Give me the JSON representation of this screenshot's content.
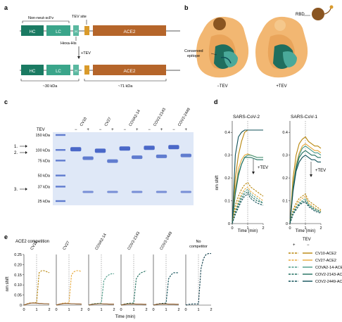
{
  "panels": {
    "a": {
      "letter": "a",
      "construct_labels": {
        "hc": "HC",
        "lc": "LC",
        "his": "H",
        "ace2": "ACE2"
      },
      "annotations": {
        "non_neut": "Non-neut-scFv",
        "tev_site": "TEV site",
        "hexa_his": "Hexa-His",
        "plus_tev": "+TEV",
        "kda30": "~30 kDa",
        "kda71": "~71 kDa"
      }
    },
    "b": {
      "letter": "b",
      "labels": {
        "rbd": "RBD",
        "conserved": "Conserved",
        "epitope": "epitope",
        "minus_tev": "−TEV",
        "plus_tev": "+TEV"
      }
    },
    "c": {
      "letter": "c",
      "tev_label": "TEV",
      "lanes": [
        "CV10",
        "CV27",
        "COVA2-14",
        "COV2-2143",
        "COV2-2449"
      ],
      "lane_signs": [
        "−",
        "+",
        "−",
        "+",
        "−",
        "+",
        "−",
        "+",
        "−",
        "+"
      ],
      "mw_markers": [
        "150 kDa",
        "100 kDa",
        "75 kDa",
        "50 kDa",
        "37 kDa",
        "25 kDa"
      ],
      "band_arrows": [
        "1.",
        "2.",
        "3."
      ]
    },
    "d": {
      "letter": "d",
      "titles": [
        "SARS-CoV-2",
        "SARS-CoV-1"
      ],
      "ylabel": "nm shift",
      "xlabel": "Time (min)",
      "plus_tev": "+TEV",
      "yticks": [
        "0",
        "0.1",
        "0.2",
        "0.3",
        "0.4"
      ],
      "xticks": [
        "0",
        "1",
        "2"
      ]
    },
    "e": {
      "letter": "e",
      "title": "ACE2 competition",
      "subplots": [
        "CV10",
        "CV27",
        "COVA2-14",
        "COV2-2143",
        "COV2-2449",
        "No competitor"
      ],
      "ylabel": "nm shift",
      "xlabel": "Time (min)",
      "yticks": [
        "0",
        "0.05",
        "0.10",
        "0.15",
        "0.20",
        "0.25"
      ],
      "xticks": [
        "0",
        "1",
        "2"
      ]
    },
    "legend": {
      "title": "TEV",
      "plus": "+",
      "minus": "−",
      "entries": [
        "CV10-ACE2",
        "CV27-ACE2",
        "COVA2-14-ACE2",
        "COV2-2143-ACE2",
        "COV2-2449-ACE2"
      ]
    }
  },
  "colors": {
    "cv10": "#b8860b",
    "cv27": "#e8a838",
    "cova2_14": "#4a9a86",
    "cov2_2143": "#1f6e5e",
    "cov2_2449": "#0f4f57",
    "hc": "#1a7a62",
    "lc": "#3aa58a",
    "ace2": "#b5652a",
    "gel_bg": "#dfe8f7",
    "gel_band": "#4a68c8"
  },
  "chart_data": [
    {
      "type": "line",
      "title": "SARS-CoV-2",
      "xlabel": "Time (min)",
      "ylabel": "nm shift",
      "xlim": [
        0,
        2
      ],
      "ylim": [
        0,
        0.45
      ],
      "x": [
        0,
        0.2,
        0.4,
        0.6,
        0.8,
        1.0,
        1.2,
        1.4,
        1.6,
        1.8,
        2.0
      ],
      "series": [
        {
          "name": "CV10-ACE2 +",
          "values": [
            0,
            0.2,
            0.3,
            0.36,
            0.4,
            0.41,
            0.41,
            0.41,
            0.41,
            0.41,
            0.41
          ]
        },
        {
          "name": "CV27-ACE2 +",
          "values": [
            0,
            0.15,
            0.24,
            0.28,
            0.3,
            0.305,
            0.3,
            0.295,
            0.29,
            0.29,
            0.29
          ]
        },
        {
          "name": "COVA2-14-ACE2 +",
          "values": [
            0,
            0.14,
            0.22,
            0.26,
            0.29,
            0.3,
            0.3,
            0.295,
            0.29,
            0.29,
            0.29
          ]
        },
        {
          "name": "COV2-2143-ACE2 +",
          "values": [
            0,
            0.13,
            0.21,
            0.26,
            0.29,
            0.29,
            0.29,
            0.285,
            0.28,
            0.28,
            0.28
          ]
        },
        {
          "name": "COV2-2449-ACE2 +",
          "values": [
            0,
            0.3,
            0.38,
            0.4,
            0.41,
            0.41,
            0.41,
            0.41,
            0.41,
            0.41,
            0.41
          ]
        },
        {
          "name": "CV10-ACE2 −",
          "values": [
            0,
            0.08,
            0.12,
            0.15,
            0.17,
            0.18,
            0.16,
            0.15,
            0.14,
            0.13,
            0.12
          ]
        },
        {
          "name": "CV27-ACE2 −",
          "values": [
            0,
            0.06,
            0.1,
            0.13,
            0.15,
            0.16,
            0.14,
            0.13,
            0.12,
            0.11,
            0.1
          ]
        },
        {
          "name": "COVA2-14-ACE2 −",
          "values": [
            0,
            0.05,
            0.09,
            0.12,
            0.14,
            0.15,
            0.13,
            0.12,
            0.11,
            0.1,
            0.09
          ]
        },
        {
          "name": "COV2-2143-ACE2 −",
          "values": [
            0,
            0.05,
            0.08,
            0.11,
            0.13,
            0.14,
            0.12,
            0.11,
            0.1,
            0.095,
            0.09
          ]
        },
        {
          "name": "COV2-2449-ACE2 −",
          "values": [
            0,
            0.04,
            0.07,
            0.1,
            0.12,
            0.13,
            0.11,
            0.1,
            0.09,
            0.085,
            0.08
          ]
        }
      ]
    },
    {
      "type": "line",
      "title": "SARS-CoV-1",
      "xlabel": "Time (min)",
      "ylabel": "nm shift",
      "xlim": [
        0,
        2
      ],
      "ylim": [
        0,
        0.45
      ],
      "x": [
        0,
        0.2,
        0.4,
        0.6,
        0.8,
        1.0,
        1.2,
        1.4,
        1.6,
        1.8,
        2.0
      ],
      "series": [
        {
          "name": "CV10-ACE2 +",
          "values": [
            0,
            0.2,
            0.3,
            0.35,
            0.37,
            0.38,
            0.36,
            0.35,
            0.34,
            0.34,
            0.33
          ]
        },
        {
          "name": "CV27-ACE2 +",
          "values": [
            0,
            0.17,
            0.26,
            0.31,
            0.34,
            0.35,
            0.34,
            0.33,
            0.32,
            0.32,
            0.31
          ]
        },
        {
          "name": "COVA2-14-ACE2 +",
          "values": [
            0,
            0.16,
            0.25,
            0.3,
            0.33,
            0.34,
            0.33,
            0.32,
            0.31,
            0.31,
            0.3
          ]
        },
        {
          "name": "COV2-2143-ACE2 +",
          "values": [
            0,
            0.15,
            0.24,
            0.29,
            0.31,
            0.32,
            0.31,
            0.3,
            0.3,
            0.29,
            0.29
          ]
        },
        {
          "name": "COV2-2449-ACE2 +",
          "values": [
            0,
            0.14,
            0.23,
            0.27,
            0.29,
            0.3,
            0.29,
            0.28,
            0.28,
            0.27,
            0.27
          ]
        },
        {
          "name": "CV10-ACE2 −",
          "values": [
            0,
            0.06,
            0.09,
            0.11,
            0.12,
            0.13,
            0.1,
            0.09,
            0.08,
            0.07,
            0.06
          ]
        },
        {
          "name": "CV27-ACE2 −",
          "values": [
            0,
            0.05,
            0.08,
            0.1,
            0.11,
            0.12,
            0.09,
            0.08,
            0.07,
            0.06,
            0.055
          ]
        },
        {
          "name": "COVA2-14-ACE2 −",
          "values": [
            0,
            0.05,
            0.07,
            0.09,
            0.1,
            0.11,
            0.085,
            0.075,
            0.065,
            0.06,
            0.05
          ]
        },
        {
          "name": "COV2-2143-ACE2 −",
          "values": [
            0,
            0.04,
            0.07,
            0.085,
            0.095,
            0.1,
            0.08,
            0.07,
            0.06,
            0.055,
            0.05
          ]
        },
        {
          "name": "COV2-2449-ACE2 −",
          "values": [
            0,
            0.04,
            0.06,
            0.08,
            0.09,
            0.095,
            0.075,
            0.065,
            0.055,
            0.05,
            0.045
          ]
        }
      ]
    },
    {
      "type": "line",
      "title": "CV10",
      "xlim": [
        0,
        2
      ],
      "ylim": [
        0,
        0.25
      ],
      "x": [
        0,
        0.2,
        0.4,
        0.6,
        0.8,
        1.0,
        1.2,
        1.4,
        1.6,
        1.8,
        2.0
      ],
      "series": [
        {
          "name": "CV10-ACE2 +",
          "values": [
            0,
            0.005,
            0.01,
            0.01,
            0.012,
            0.012,
            0.16,
            0.17,
            0.17,
            0.165,
            0.16
          ]
        },
        {
          "name": "CV10-ACE2 −",
          "values": [
            0,
            0.005,
            0.008,
            0.01,
            0.01,
            0.01,
            0.008,
            0.008,
            0.007,
            0.007,
            0.006
          ]
        }
      ]
    },
    {
      "type": "line",
      "title": "CV27",
      "xlim": [
        0,
        2
      ],
      "ylim": [
        0,
        0.25
      ],
      "x": [
        0,
        0.2,
        0.4,
        0.6,
        0.8,
        1.0,
        1.2,
        1.4,
        1.6,
        1.8,
        2.0
      ],
      "series": [
        {
          "name": "CV27-ACE2 +",
          "values": [
            0,
            0.004,
            0.008,
            0.01,
            0.01,
            0.01,
            0.15,
            0.165,
            0.17,
            0.17,
            0.165
          ]
        },
        {
          "name": "CV27-ACE2 −",
          "values": [
            0,
            0.004,
            0.006,
            0.008,
            0.008,
            0.008,
            0.007,
            0.007,
            0.006,
            0.006,
            0.005
          ]
        }
      ]
    },
    {
      "type": "line",
      "title": "COVA2-14",
      "xlim": [
        0,
        2
      ],
      "ylim": [
        0,
        0.25
      ],
      "x": [
        0,
        0.2,
        0.4,
        0.6,
        0.8,
        1.0,
        1.2,
        1.4,
        1.6,
        1.8,
        2.0
      ],
      "series": [
        {
          "name": "COVA2-14-ACE2 +",
          "values": [
            0,
            0.004,
            0.007,
            0.008,
            0.009,
            0.01,
            0.12,
            0.14,
            0.15,
            0.155,
            0.155
          ]
        },
        {
          "name": "COVA2-14-ACE2 −",
          "values": [
            0,
            0.003,
            0.005,
            0.006,
            0.007,
            0.007,
            0.006,
            0.006,
            0.005,
            0.005,
            0.005
          ]
        }
      ]
    },
    {
      "type": "line",
      "title": "COV2-2143",
      "xlim": [
        0,
        2
      ],
      "ylim": [
        0,
        0.25
      ],
      "x": [
        0,
        0.2,
        0.4,
        0.6,
        0.8,
        1.0,
        1.2,
        1.4,
        1.6,
        1.8,
        2.0
      ],
      "series": [
        {
          "name": "COV2-2143-ACE2 +",
          "values": [
            0,
            0.004,
            0.007,
            0.009,
            0.01,
            0.01,
            0.13,
            0.15,
            0.16,
            0.165,
            0.17
          ]
        },
        {
          "name": "COV2-2143-ACE2 −",
          "values": [
            0,
            0.003,
            0.005,
            0.006,
            0.006,
            0.006,
            0.005,
            0.005,
            0.005,
            0.004,
            0.004
          ]
        }
      ]
    },
    {
      "type": "line",
      "title": "COV2-2449",
      "xlim": [
        0,
        2
      ],
      "ylim": [
        0,
        0.25
      ],
      "x": [
        0,
        0.2,
        0.4,
        0.6,
        0.8,
        1.0,
        1.2,
        1.4,
        1.6,
        1.8,
        2.0
      ],
      "series": [
        {
          "name": "COV2-2449-ACE2 +",
          "values": [
            0,
            0.004,
            0.006,
            0.008,
            0.009,
            0.01,
            0.13,
            0.15,
            0.16,
            0.16,
            0.16
          ]
        },
        {
          "name": "COV2-2449-ACE2 −",
          "values": [
            0,
            0.003,
            0.005,
            0.006,
            0.006,
            0.006,
            0.005,
            0.005,
            0.005,
            0.004,
            0.004
          ]
        }
      ]
    },
    {
      "type": "line",
      "title": "No competitor",
      "xlim": [
        0,
        2
      ],
      "ylim": [
        0,
        0.25
      ],
      "x": [
        0,
        0.2,
        0.4,
        0.6,
        0.8,
        1.0,
        1.2,
        1.4,
        1.6,
        1.8,
        2.0
      ],
      "series": [
        {
          "name": "No competitor",
          "values": [
            0,
            0.004,
            0.005,
            0.006,
            0.006,
            0.006,
            0.18,
            0.23,
            0.25,
            0.255,
            0.255
          ]
        }
      ]
    }
  ]
}
